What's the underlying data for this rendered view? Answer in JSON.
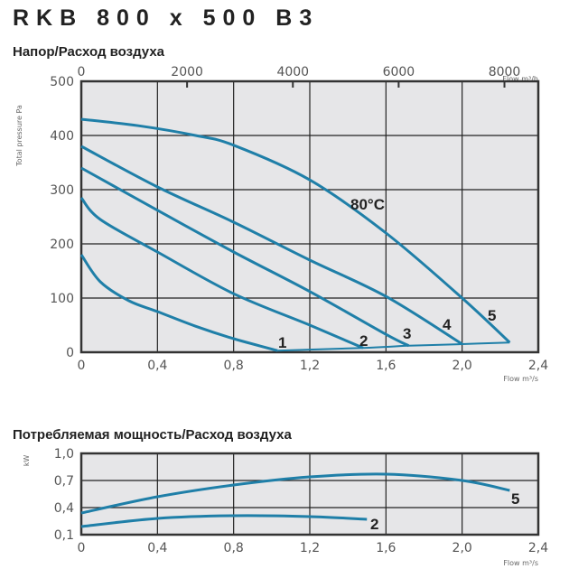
{
  "title": "RKB 800 x 500 B3",
  "chart_data": [
    {
      "type": "line",
      "title": "Напор/Расход воздуха",
      "xlabel": "Flow m³/s",
      "ylabel": "Total pressure Pa",
      "x2label": "Flow m³/h",
      "xlim": [
        0,
        2.4
      ],
      "ylim": [
        0,
        500
      ],
      "x2lim_note": "m³/h",
      "xticks": [
        "0",
        "0,4",
        "0,8",
        "1,2",
        "1,6",
        "2,0",
        "2,4"
      ],
      "yticks": [
        "0",
        "100",
        "200",
        "300",
        "400",
        "500"
      ],
      "x2ticks": [
        "0",
        "2000",
        "4000",
        "6000",
        "8000"
      ],
      "grid": true,
      "annotation": "80°C",
      "series": [
        {
          "name": "1",
          "points": [
            [
              0,
              180
            ],
            [
              0.1,
              130
            ],
            [
              0.25,
              95
            ],
            [
              0.4,
              75
            ],
            [
              0.6,
              48
            ],
            [
              0.8,
              25
            ],
            [
              1.03,
              3
            ]
          ]
        },
        {
          "name": "2",
          "points": [
            [
              0,
              285
            ],
            [
              0.1,
              245
            ],
            [
              0.4,
              185
            ],
            [
              0.8,
              108
            ],
            [
              1.2,
              50
            ],
            [
              1.48,
              8
            ]
          ]
        },
        {
          "name": "3",
          "points": [
            [
              0,
              340
            ],
            [
              0.4,
              262
            ],
            [
              0.8,
              185
            ],
            [
              1.2,
              112
            ],
            [
              1.6,
              33
            ],
            [
              1.72,
              12
            ]
          ]
        },
        {
          "name": "4",
          "points": [
            [
              0,
              380
            ],
            [
              0.4,
              305
            ],
            [
              0.8,
              240
            ],
            [
              1.2,
              170
            ],
            [
              1.6,
              103
            ],
            [
              2.0,
              15
            ]
          ]
        },
        {
          "name": "5",
          "points": [
            [
              0,
              430
            ],
            [
              0.3,
              418
            ],
            [
              0.6,
              400
            ],
            [
              0.8,
              382
            ],
            [
              1.2,
              318
            ],
            [
              1.6,
              220
            ],
            [
              2.0,
              100
            ],
            [
              2.25,
              18
            ]
          ]
        },
        {
          "name": "",
          "points": [
            [
              1.03,
              3
            ],
            [
              1.48,
              8
            ],
            [
              1.72,
              12
            ],
            [
              2.0,
              15
            ],
            [
              2.25,
              18
            ]
          ]
        }
      ]
    },
    {
      "type": "line",
      "title": "Потребляемая мощность/Расход воздуха",
      "xlabel": "Flow m³/s",
      "ylabel": "kW",
      "xlim": [
        0,
        2.4
      ],
      "ylim": [
        0.1,
        1.0
      ],
      "xticks": [
        "0",
        "0,4",
        "0,8",
        "1,2",
        "1,6",
        "2,0",
        "2,4"
      ],
      "yticks": [
        "0,1",
        "0,4",
        "0,7",
        "1,0"
      ],
      "grid": true,
      "series": [
        {
          "name": "5",
          "points": [
            [
              0,
              0.34
            ],
            [
              0.4,
              0.52
            ],
            [
              0.8,
              0.65
            ],
            [
              1.2,
              0.74
            ],
            [
              1.6,
              0.77
            ],
            [
              2.0,
              0.7
            ],
            [
              2.25,
              0.59
            ]
          ]
        },
        {
          "name": "2",
          "points": [
            [
              0,
              0.19
            ],
            [
              0.4,
              0.28
            ],
            [
              0.8,
              0.31
            ],
            [
              1.2,
              0.3
            ],
            [
              1.5,
              0.27
            ]
          ]
        }
      ]
    }
  ],
  "colors": {
    "curve": "#1f7fa8",
    "plot_bg": "#e6e6e8",
    "grid": "#222222"
  }
}
